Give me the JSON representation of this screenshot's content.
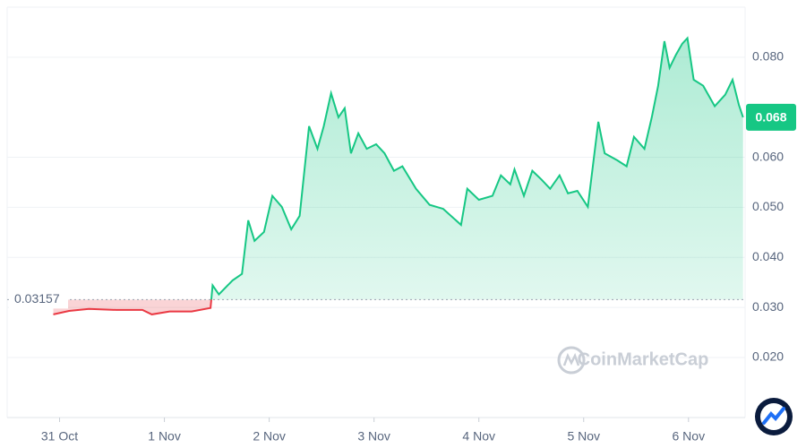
{
  "chart_data": {
    "type": "line",
    "watermark": "CoinMarketCap",
    "up_color": "#16c784",
    "down_color": "#ea3943",
    "baseline": 0.03157,
    "last_price": {
      "value": 0.068,
      "label": "0.068"
    },
    "xlim": [
      -0.5,
      6.54
    ],
    "xticks": [
      {
        "value": 0,
        "label": "31 Oct"
      },
      {
        "value": 1,
        "label": "1 Nov"
      },
      {
        "value": 2,
        "label": "2 Nov"
      },
      {
        "value": 3,
        "label": "3 Nov"
      },
      {
        "value": 4,
        "label": "4 Nov"
      },
      {
        "value": 5,
        "label": "5 Nov"
      },
      {
        "value": 6,
        "label": "6 Nov"
      }
    ],
    "ylim": [
      0.008,
      0.09
    ],
    "yticks": [
      {
        "value": 0.02,
        "label": "0.020"
      },
      {
        "value": 0.03,
        "label": "0.030"
      },
      {
        "value": 0.04,
        "label": "0.040"
      },
      {
        "value": 0.05,
        "label": "0.050"
      },
      {
        "value": 0.06,
        "label": "0.060"
      },
      {
        "value": 0.08,
        "label": "0.080"
      }
    ],
    "grid": true,
    "x": [
      -0.06,
      0.09,
      0.28,
      0.54,
      0.79,
      0.88,
      1.05,
      1.26,
      1.44,
      1.46,
      1.52,
      1.65,
      1.74,
      1.8,
      1.86,
      1.95,
      2.03,
      2.12,
      2.21,
      2.29,
      2.38,
      2.46,
      2.52,
      2.59,
      2.66,
      2.72,
      2.78,
      2.85,
      2.93,
      3.02,
      3.1,
      3.19,
      3.27,
      3.4,
      3.53,
      3.66,
      3.83,
      3.89,
      4.0,
      4.13,
      4.21,
      4.3,
      4.34,
      4.43,
      4.51,
      4.6,
      4.68,
      4.77,
      4.85,
      4.94,
      5.04,
      5.14,
      5.2,
      5.32,
      5.41,
      5.48,
      5.58,
      5.65,
      5.71,
      5.77,
      5.82,
      5.88,
      5.94,
      5.99,
      6.05,
      6.14,
      6.25,
      6.35,
      6.42,
      6.48,
      6.52
    ],
    "values": [
      0.0286,
      0.0293,
      0.0297,
      0.0295,
      0.0295,
      0.0286,
      0.0292,
      0.0292,
      0.0299,
      0.0344,
      0.0326,
      0.0354,
      0.0367,
      0.0474,
      0.0433,
      0.0451,
      0.0523,
      0.0501,
      0.0456,
      0.0483,
      0.0662,
      0.0617,
      0.0662,
      0.0728,
      0.068,
      0.0698,
      0.0608,
      0.0648,
      0.0617,
      0.0626,
      0.0608,
      0.0573,
      0.0582,
      0.0537,
      0.0505,
      0.0497,
      0.0465,
      0.0537,
      0.0515,
      0.0523,
      0.0564,
      0.0546,
      0.0576,
      0.0523,
      0.0573,
      0.0555,
      0.0537,
      0.0564,
      0.0528,
      0.0533,
      0.0501,
      0.0671,
      0.0608,
      0.0594,
      0.0582,
      0.0641,
      0.0617,
      0.068,
      0.0743,
      0.0832,
      0.0779,
      0.0805,
      0.0827,
      0.0838,
      0.0755,
      0.0743,
      0.0702,
      0.0725,
      0.0755,
      0.0705,
      0.068
    ]
  }
}
